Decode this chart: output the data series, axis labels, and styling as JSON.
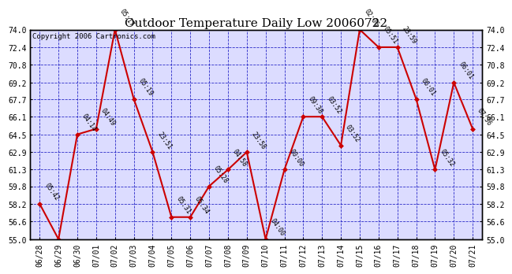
{
  "title": "Outdoor Temperature Daily Low 20060722",
  "copyright": "Copyright 2006 Cartronics.com",
  "x_labels": [
    "06/28",
    "06/29",
    "06/30",
    "07/01",
    "07/02",
    "07/03",
    "07/04",
    "07/05",
    "07/06",
    "07/07",
    "07/08",
    "07/09",
    "07/10",
    "07/11",
    "07/12",
    "07/13",
    "07/14",
    "07/15",
    "07/16",
    "07/17",
    "07/18",
    "07/19",
    "07/20",
    "07/21"
  ],
  "y_values": [
    58.2,
    55.0,
    64.5,
    65.0,
    74.0,
    67.7,
    62.9,
    57.0,
    57.0,
    59.8,
    61.3,
    62.9,
    55.0,
    61.3,
    66.1,
    66.1,
    63.5,
    74.0,
    72.4,
    72.4,
    67.7,
    61.3,
    69.2,
    65.0
  ],
  "time_labels": [
    "05:42",
    "",
    "04:14",
    "04:49",
    "05:17",
    "05:19",
    "23:51",
    "05:31",
    "05:34",
    "05:28",
    "04:58",
    "23:58",
    "04:00",
    "00:00",
    "09:38",
    "03:52",
    "03:52",
    "02:06",
    "05:51",
    "23:59",
    "06:01",
    "05:32",
    "06:01",
    "07:36"
  ],
  "ylim": [
    55.0,
    74.0
  ],
  "ytick_values": [
    55.0,
    56.6,
    58.2,
    59.8,
    61.3,
    62.9,
    64.5,
    66.1,
    67.7,
    69.2,
    70.8,
    72.4,
    74.0
  ],
  "ytick_labels": [
    "55.0",
    "56.6",
    "58.2",
    "59.8",
    "61.3",
    "62.9",
    "64.5",
    "66.1",
    "67.7",
    "69.2",
    "70.8",
    "72.4",
    "74.0"
  ],
  "line_color": "#cc0000",
  "marker_color": "#cc0000",
  "grid_color": "#0000bb",
  "background_color": "#dcdcff",
  "title_fontsize": 11,
  "copyright_fontsize": 6.5,
  "label_fontsize": 6.0,
  "tick_fontsize": 7.0
}
